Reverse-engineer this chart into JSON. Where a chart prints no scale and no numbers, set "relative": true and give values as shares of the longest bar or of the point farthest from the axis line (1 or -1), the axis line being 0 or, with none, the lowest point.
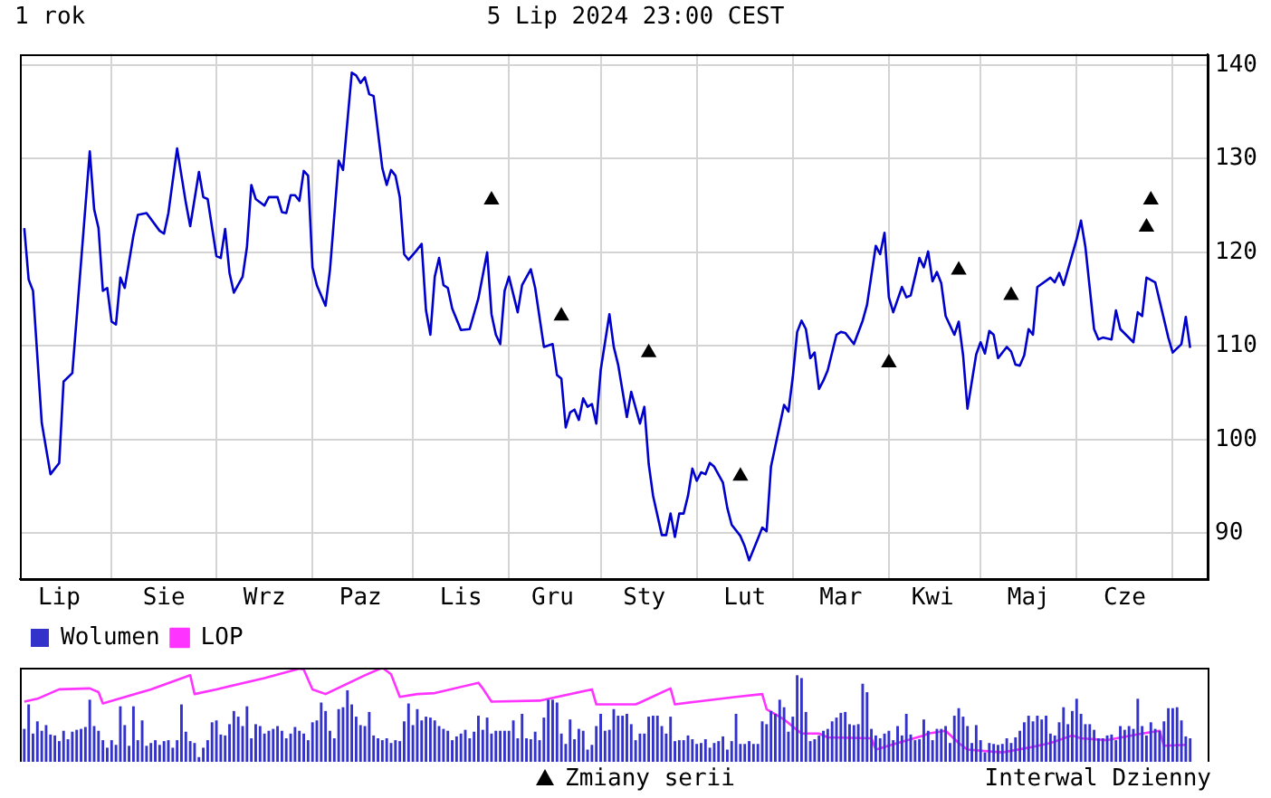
{
  "chart_data": [
    {
      "type": "line",
      "title": "1 rok",
      "subtitle": "5 Lip 2024 23:00 CEST",
      "annotations": [
        "Interwal Dzienny"
      ],
      "categories": [
        null,
        null,
        null,
        null,
        null,
        null,
        null,
        null,
        null,
        "Lip",
        null,
        null,
        null,
        null,
        null,
        null,
        null,
        null,
        null,
        null,
        null,
        null,
        null,
        null,
        null,
        null,
        null,
        null,
        null,
        null,
        null,
        null,
        null,
        "Sie",
        null,
        null,
        null,
        null,
        null,
        null,
        null,
        null,
        null,
        null,
        null,
        null,
        null,
        null,
        null,
        null,
        null,
        null,
        null,
        null,
        null,
        null,
        "Wrz",
        null,
        null,
        null,
        null,
        null,
        null,
        null,
        null,
        null,
        null,
        null,
        null,
        null,
        null,
        null,
        null,
        null,
        null,
        null,
        null,
        null,
        "Paz",
        null,
        null,
        null,
        null,
        null,
        null,
        null,
        null,
        null,
        null,
        null,
        null,
        null,
        null,
        null,
        null,
        null,
        null,
        null,
        null,
        null,
        null,
        "Lis",
        null,
        null,
        null,
        null,
        null,
        null,
        null,
        null,
        null,
        null,
        null,
        null,
        null,
        null,
        null,
        null,
        null,
        null,
        null,
        null,
        "Gru",
        null,
        null,
        null,
        null,
        null,
        null,
        null,
        null,
        null,
        null,
        null,
        null,
        null,
        null,
        null,
        null,
        null,
        null,
        null,
        null,
        "Sty",
        null,
        null,
        null,
        null,
        null,
        null,
        null,
        null,
        null,
        null,
        null,
        null,
        null,
        null,
        null,
        null,
        null,
        null,
        null,
        null,
        null,
        null,
        "Lut",
        null,
        null,
        null,
        null,
        null,
        null,
        null,
        null,
        null,
        null,
        null,
        null,
        null,
        null,
        null,
        null,
        null,
        null,
        null,
        null,
        null,
        "Mar",
        null,
        null,
        null,
        null,
        null,
        null,
        null,
        null,
        null,
        null,
        null,
        null,
        null,
        null,
        null,
        null,
        null,
        null,
        null,
        null,
        "Kwi",
        null,
        null,
        null,
        null,
        null,
        null,
        null,
        null,
        null,
        null,
        null,
        null,
        null,
        null,
        null,
        null,
        null,
        null,
        null,
        null,
        null,
        "Maj",
        null,
        null,
        null,
        null,
        null,
        null,
        null,
        null,
        null,
        null,
        null,
        null,
        null,
        null,
        null,
        null,
        null,
        null,
        null,
        null,
        null,
        "Cze",
        null,
        null,
        null,
        null,
        null,
        null,
        null,
        null,
        null,
        null,
        null,
        null,
        null,
        null,
        null,
        null,
        null,
        null,
        null
      ],
      "ylim": [
        85.1,
        141.2
      ],
      "yticks": [
        90,
        100,
        110,
        120,
        130,
        140
      ],
      "grid": true,
      "legend": "bottom",
      "series": [
        {
          "color": "#0000cc",
          "marker": "none",
          "values": [
            null,
            122.6,
            117.1,
            115.9,
            null,
            101.8,
            null,
            96.3,
            null,
            97.5,
            106.2,
            null,
            107.1,
            null,
            null,
            null,
            130.8,
            124.6,
            122.6,
            115.9,
            116.2,
            112.6,
            112.3,
            117.3,
            116.2,
            null,
            121.8,
            124.0,
            null,
            124.2,
            null,
            null,
            122.3,
            122.0,
            124.2,
            null,
            131.1,
            null,
            125.3,
            122.8,
            null,
            128.6,
            125.9,
            125.7,
            null,
            119.6,
            119.4,
            122.5,
            117.8,
            115.7,
            null,
            117.4,
            120.6,
            127.2,
            125.7,
            null,
            125.0,
            125.9,
            null,
            125.9,
            124.3,
            124.2,
            126.1,
            126.1,
            125.5,
            128.7,
            128.2,
            118.4,
            116.5,
            null,
            114.3,
            118.1,
            null,
            129.8,
            128.8,
            null,
            139.2,
            138.9,
            138.1,
            138.7,
            136.9,
            136.7,
            null,
            129.0,
            127.2,
            128.8,
            128.2,
            125.9,
            119.8,
            119.2,
            null,
            120.3,
            120.9,
            113.8,
            111.2,
            117.4,
            119.4,
            116.5,
            116.2,
            114.0,
            null,
            111.7,
            null,
            111.8,
            null,
            115.1,
            null,
            120.0,
            113.4,
            111.2,
            110.2,
            115.9,
            117.4,
            null,
            113.6,
            116.5,
            null,
            118.2,
            116.2,
            null,
            109.9,
            null,
            110.2,
            106.9,
            106.5,
            101.3,
            102.9,
            103.2,
            102.1,
            104.4,
            103.5,
            103.8,
            101.7,
            107.4,
            null,
            113.4,
            109.9,
            108.0,
            null,
            102.4,
            105.1,
            null,
            101.7,
            103.5,
            97.4,
            94.0,
            null,
            89.8,
            89.8,
            92.1,
            89.6,
            92.1,
            92.1,
            94.0,
            96.9,
            95.6,
            96.5,
            96.3,
            97.5,
            97.1,
            null,
            95.4,
            92.7,
            90.9,
            null,
            89.7,
            88.6,
            87.1,
            null,
            89.4,
            90.6,
            90.2,
            97.1,
            99.3,
            null,
            103.7,
            103.0,
            106.7,
            111.5,
            112.7,
            111.8,
            108.7,
            109.3,
            105.4,
            106.3,
            107.4,
            null,
            111.2,
            111.5,
            111.4,
            null,
            110.2,
            null,
            112.7,
            114.4,
            null,
            120.7,
            119.8,
            122.1,
            115.2,
            113.6,
            null,
            116.3,
            115.2,
            115.4,
            117.4,
            119.4,
            118.4,
            120.1,
            116.9,
            117.9,
            116.7,
            113.2,
            null,
            111.2,
            112.6,
            109.0,
            103.3,
            106.2,
            109.1,
            110.4,
            109.2,
            111.6,
            111.2,
            108.7,
            null,
            109.9,
            109.4,
            108.0,
            107.9,
            109.0,
            111.8,
            111.2,
            116.3,
            null,
            null,
            117.3,
            116.8,
            117.8,
            116.5,
            null,
            null,
            121.4,
            123.4,
            120.6,
            null,
            111.8,
            110.7,
            110.9,
            null,
            110.7,
            113.8,
            111.8,
            null,
            null,
            110.4,
            113.6,
            113.2,
            117.3,
            null,
            116.8,
            null,
            null,
            110.9,
            109.3,
            null,
            110.2,
            113.1,
            109.8,
            null,
            null,
            null,
            null
          ]
        },
        {
          "type": "scatter",
          "name": "Zmiany serii",
          "color": "#000000",
          "marker": "triangle",
          "values": [
            null,
            null,
            null,
            null,
            null,
            null,
            null,
            null,
            null,
            null,
            null,
            null,
            null,
            null,
            null,
            null,
            null,
            null,
            null,
            null,
            null,
            null,
            null,
            null,
            null,
            null,
            null,
            null,
            null,
            null,
            null,
            null,
            null,
            null,
            null,
            null,
            null,
            null,
            null,
            null,
            null,
            null,
            null,
            null,
            null,
            null,
            null,
            null,
            null,
            null,
            null,
            null,
            null,
            null,
            null,
            null,
            null,
            null,
            null,
            null,
            null,
            null,
            null,
            null,
            null,
            null,
            null,
            null,
            null,
            null,
            null,
            null,
            null,
            null,
            null,
            null,
            null,
            null,
            null,
            null,
            null,
            null,
            null,
            null,
            null,
            null,
            null,
            null,
            null,
            null,
            null,
            null,
            null,
            null,
            null,
            null,
            null,
            null,
            null,
            null,
            null,
            null,
            null,
            null,
            null,
            null,
            null,
            null,
            125.6,
            null,
            null,
            null,
            null,
            null,
            null,
            null,
            null,
            null,
            null,
            null,
            null,
            null,
            null,
            null,
            113.2,
            null,
            null,
            null,
            null,
            null,
            null,
            null,
            null,
            null,
            null,
            null,
            null,
            null,
            null,
            null,
            null,
            null,
            null,
            null,
            109.3,
            null,
            null,
            null,
            null,
            null,
            null,
            null,
            null,
            null,
            null,
            null,
            null,
            null,
            null,
            null,
            null,
            null,
            null,
            null,
            null,
            96.1,
            null,
            null,
            null,
            null,
            null,
            null,
            null,
            null,
            null,
            null,
            null,
            null,
            null,
            null,
            null,
            null,
            null,
            null,
            null,
            null,
            null,
            null,
            null,
            null,
            null,
            null,
            null,
            null,
            null,
            null,
            null,
            null,
            null,
            108.2,
            null,
            null,
            null,
            null,
            null,
            null,
            null,
            null,
            null,
            null,
            null,
            null,
            null,
            null,
            null,
            118.1,
            null,
            null,
            null,
            null,
            null,
            null,
            null,
            null,
            null,
            null,
            null,
            115.4,
            null,
            null,
            null,
            null,
            null,
            null,
            null,
            null,
            null,
            null,
            null,
            null,
            null,
            null,
            null,
            null,
            null,
            null,
            null,
            null,
            null,
            null,
            null,
            null,
            null,
            null,
            null,
            null,
            null,
            null,
            122.7,
            125.6,
            null,
            null,
            null,
            null,
            null,
            null,
            null,
            null,
            null,
            null,
            null,
            null,
            null
          ]
        }
      ]
    },
    {
      "type": "bar",
      "relative": true,
      "tick_labels": false,
      "legend": "top left",
      "categories": [
        null,
        null,
        null,
        null,
        null,
        null,
        null,
        null,
        null,
        null,
        null,
        null,
        null,
        null,
        null,
        null,
        null,
        null,
        null,
        null,
        null,
        null,
        null,
        null,
        null,
        null,
        null,
        null,
        null,
        null,
        null,
        null,
        null,
        null,
        null,
        null,
        null,
        null,
        null,
        null,
        null,
        null,
        null,
        null,
        null,
        null,
        null,
        null,
        null,
        null,
        null,
        null,
        null,
        null,
        null,
        null,
        null,
        null,
        null,
        null,
        null,
        null,
        null,
        null,
        null,
        null,
        null,
        null,
        null,
        null,
        null,
        null,
        null,
        null,
        null,
        null,
        null,
        null,
        null,
        null,
        null,
        null,
        null,
        null,
        null,
        null,
        null,
        null,
        null,
        null,
        null,
        null,
        null,
        null,
        null,
        null,
        null,
        null,
        null,
        null,
        null,
        null,
        null,
        null,
        null,
        null,
        null,
        null,
        null,
        null,
        null,
        null,
        null,
        null,
        null,
        null,
        null,
        null,
        null,
        null,
        null,
        null,
        null,
        null,
        null,
        null,
        null,
        null,
        null,
        null,
        null,
        null,
        null,
        null,
        null,
        null,
        null,
        null,
        null,
        null,
        null,
        null,
        null,
        null,
        null,
        null,
        null,
        null,
        null,
        null,
        null,
        null,
        null,
        null,
        null,
        null,
        null,
        null,
        null,
        null,
        null,
        null,
        null,
        null,
        null,
        null,
        null,
        null,
        null,
        null,
        null,
        null,
        null,
        null,
        null,
        null,
        null,
        null,
        null,
        null,
        null,
        null,
        null,
        null,
        null,
        null,
        null,
        null,
        null,
        null,
        null,
        null,
        null,
        null,
        null,
        null,
        null,
        null,
        null,
        null,
        null,
        null,
        null,
        null,
        null,
        null,
        null,
        null,
        null,
        null,
        null,
        null,
        null,
        null,
        null,
        null,
        null,
        null,
        null,
        null,
        null,
        null,
        null,
        null,
        null,
        null,
        null,
        null,
        null,
        null,
        null,
        null,
        null,
        null,
        null,
        null,
        null,
        null,
        null,
        null,
        null,
        null,
        null,
        null,
        null,
        null,
        null,
        null,
        null,
        null,
        null,
        null,
        null,
        null,
        null,
        null,
        null,
        null,
        null,
        null,
        null,
        null,
        null,
        null,
        null,
        null,
        null,
        null,
        null,
        null,
        null,
        null,
        null
      ],
      "series": [
        {
          "name": "Wolumen",
          "color": "#3333cc",
          "values": [
            null,
            0.35,
            0.61,
            0.3,
            0.43,
            0.33,
            0.39,
            0.29,
            0.28,
            0.22,
            0.33,
            0.24,
            0.32,
            0.34,
            0.35,
            0.37,
            0.66,
            0.38,
            0.33,
            0.23,
            0.15,
            0.23,
            0.18,
            0.59,
            0.39,
            0.17,
            0.59,
            0.23,
            0.44,
            0.17,
            0.2,
            0.23,
            0.18,
            0.22,
            0.23,
            0.15,
            0.23,
            0.61,
            0.32,
            0.22,
            0.2,
            0.05,
            0.15,
            0.23,
            0.42,
            0.44,
            0.29,
            0.28,
            0.4,
            0.54,
            0.48,
            0.38,
            0.59,
            0.25,
            0.4,
            0.38,
            0.3,
            0.33,
            0.35,
            0.38,
            0.33,
            0.25,
            0.3,
            0.37,
            0.33,
            0.3,
            0.23,
            0.42,
            0.44,
            0.63,
            0.54,
            0.33,
            0.25,
            0.56,
            0.58,
            0.76,
            0.61,
            0.48,
            0.39,
            0.38,
            0.53,
            0.28,
            0.25,
            0.23,
            0.25,
            0.2,
            0.23,
            0.22,
            0.43,
            0.62,
            0.39,
            0.56,
            0.44,
            0.48,
            0.47,
            0.44,
            0.38,
            0.35,
            0.33,
            0.23,
            0.27,
            0.3,
            0.34,
            0.25,
            0.32,
            0.49,
            0.34,
            0.47,
            0.3,
            0.33,
            0.33,
            0.33,
            0.33,
            0.44,
            0.25,
            0.51,
            0.25,
            0.24,
            0.32,
            0.23,
            0.47,
            0.66,
            0.66,
            0.63,
            0.3,
            0.19,
            0.45,
            0.24,
            0.35,
            0.33,
            0.13,
            0.18,
            0.38,
            0.51,
            0.33,
            0.34,
            0.56,
            0.49,
            0.49,
            0.51,
            0.4,
            0.23,
            0.3,
            0.3,
            0.48,
            0.49,
            0.49,
            0.38,
            0.3,
            0.48,
            0.22,
            0.23,
            0.23,
            0.28,
            0.24,
            0.19,
            0.2,
            0.24,
            0.15,
            0.2,
            0.22,
            0.27,
            0.13,
            0.22,
            0.51,
            0.19,
            0.19,
            0.22,
            0.19,
            0.19,
            0.43,
            0.4,
            0.54,
            0.51,
            0.66,
            0.58,
            0.32,
            0.48,
            0.92,
            0.89,
            0.53,
            0.22,
            0.24,
            0.28,
            0.33,
            0.35,
            0.43,
            0.47,
            0.52,
            0.53,
            0.4,
            0.39,
            0.4,
            0.83,
            0.74,
            0.35,
            0.28,
            0.25,
            0.3,
            0.33,
            0.23,
            0.38,
            0.28,
            0.51,
            0.29,
            0.23,
            0.24,
            0.45,
            0.33,
            0.23,
            0.35,
            0.35,
            0.38,
            0.2,
            0.49,
            0.57,
            0.48,
            0.38,
            0.2,
            0.39,
            0.23,
            0.1,
            0.2,
            0.19,
            0.18,
            0.19,
            0.25,
            0.2,
            0.26,
            0.33,
            0.42,
            0.49,
            0.43,
            0.49,
            0.45,
            0.49,
            0.3,
            0.28,
            0.42,
            0.58,
            0.4,
            0.54,
            0.67,
            0.51,
            0.4,
            0.4,
            0.34,
            0.25,
            0.25,
            0.28,
            0.29,
            0.23,
            0.38,
            0.34,
            0.38,
            0.35,
            0.67,
            0.38,
            0.28,
            0.42,
            0.35,
            0.33,
            0.43,
            0.57,
            0.57,
            0.58,
            0.44,
            0.27,
            0.25,
            null,
            null,
            null,
            null
          ]
        },
        {
          "type": "line",
          "name": "LOP",
          "color": "#ff33ff",
          "marker": "none",
          "values": [
            null,
            0.64,
            null,
            null,
            0.67,
            null,
            null,
            null,
            null,
            0.77,
            null,
            null,
            null,
            null,
            null,
            null,
            0.78,
            null,
            0.74,
            0.62,
            null,
            null,
            0.66,
            null,
            null,
            null,
            null,
            null,
            null,
            null,
            0.77,
            null,
            null,
            null,
            null,
            null,
            null,
            null,
            null,
            0.92,
            0.72,
            null,
            null,
            null,
            null,
            0.77,
            null,
            null,
            null,
            null,
            null,
            null,
            null,
            null,
            null,
            null,
            0.89,
            null,
            null,
            null,
            null,
            null,
            null,
            null,
            0.99,
            0.98,
            null,
            0.77,
            null,
            null,
            0.72,
            null,
            null,
            null,
            null,
            null,
            null,
            null,
            null,
            0.92,
            null,
            null,
            null,
            1,
            null,
            0.93,
            null,
            0.69,
            null,
            null,
            null,
            0.72,
            null,
            null,
            null,
            0.73,
            null,
            null,
            null,
            null,
            null,
            null,
            null,
            null,
            null,
            0.84,
            0.78,
            null,
            0.64,
            null,
            null,
            null,
            null,
            null,
            null,
            null,
            null,
            null,
            null,
            0.65,
            null,
            null,
            null,
            null,
            null,
            null,
            null,
            null,
            null,
            null,
            null,
            0.77,
            0.61,
            null,
            null,
            null,
            null,
            null,
            null,
            null,
            null,
            0.61,
            0.63,
            null,
            null,
            null,
            null,
            null,
            null,
            0.78,
            0.61,
            null,
            null,
            null,
            null,
            0.64,
            null,
            null,
            null,
            null,
            null,
            null,
            null,
            null,
            0.69,
            null,
            null,
            null,
            null,
            null,
            0.72,
            0.56,
            null,
            null,
            null,
            0.45,
            null,
            null,
            null,
            0.3,
            null,
            null,
            null,
            0.3,
            null,
            0.26,
            null,
            null,
            null,
            null,
            null,
            null,
            null,
            null,
            null,
            0.25,
            0.13,
            null,
            null,
            null,
            null,
            0.2,
            null,
            null,
            null,
            null,
            null,
            0.28,
            0.3,
            null,
            null,
            null,
            0.33,
            null,
            null,
            0.2,
            null,
            0.13,
            null,
            null,
            null,
            null,
            null,
            null,
            null,
            0.1,
            null,
            null,
            null,
            null,
            null,
            0.15,
            null,
            null,
            null,
            null,
            0.2,
            null,
            null,
            null,
            null,
            0.28,
            null,
            0.25,
            null,
            null,
            null,
            null,
            null,
            0.23,
            null,
            null,
            null,
            null,
            null,
            null,
            null,
            0.3,
            null,
            null,
            null,
            0.33,
            0.17,
            null,
            null,
            null,
            null,
            0.18,
            null,
            null,
            null,
            null,
            null
          ]
        }
      ]
    }
  ]
}
